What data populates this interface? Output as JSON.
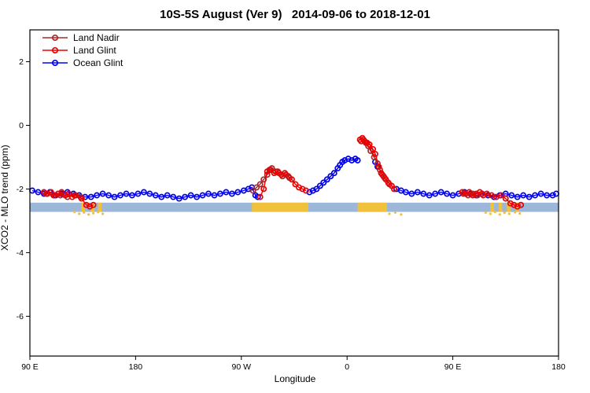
{
  "chart_data": {
    "type": "scatter",
    "title": "10S-5S August (Ver 9)   2014-09-06 to 2018-12-01",
    "xlabel": "Longitude",
    "ylabel": "XCO2 - MLO trend (ppm)",
    "x_axis_note": "x is degrees eastward along axis starting at 90E, wrapping through 180 / 90W / 0 / 90E / 180",
    "xlim": [
      0,
      450
    ],
    "ylim": [
      -7.25,
      3.0
    ],
    "x_ticks": [
      {
        "u": 0,
        "label": "90 E"
      },
      {
        "u": 90,
        "label": "180"
      },
      {
        "u": 180,
        "label": "90 W"
      },
      {
        "u": 270,
        "label": "0"
      },
      {
        "u": 360,
        "label": "90 E"
      },
      {
        "u": 450,
        "label": "180"
      }
    ],
    "y_ticks": [
      2,
      0,
      -2,
      -4,
      -6
    ],
    "grid": false,
    "legend_position": "top-left",
    "legend": [
      {
        "name": "Land Nadir",
        "color": "#A52A2A"
      },
      {
        "name": "Land Glint",
        "color": "#EE0000"
      },
      {
        "name": "Ocean Glint",
        "color": "#0000EE"
      }
    ],
    "series": [
      {
        "name": "Ocean Glint",
        "color": "#0000EE",
        "segments": [
          [
            [
              2,
              -2.05
            ],
            [
              7,
              -2.1
            ],
            [
              12,
              -2.15
            ],
            [
              17,
              -2.1
            ],
            [
              22,
              -2.2
            ],
            [
              27,
              -2.15
            ],
            [
              32,
              -2.1
            ],
            [
              37,
              -2.15
            ],
            [
              42,
              -2.2
            ],
            [
              47,
              -2.25
            ],
            [
              52,
              -2.25
            ],
            [
              57,
              -2.2
            ],
            [
              62,
              -2.15
            ],
            [
              67,
              -2.2
            ],
            [
              72,
              -2.25
            ],
            [
              77,
              -2.2
            ],
            [
              82,
              -2.15
            ],
            [
              87,
              -2.2
            ],
            [
              92,
              -2.15
            ],
            [
              97,
              -2.1
            ],
            [
              102,
              -2.15
            ],
            [
              107,
              -2.2
            ],
            [
              112,
              -2.25
            ],
            [
              117,
              -2.2
            ],
            [
              122,
              -2.25
            ],
            [
              127,
              -2.3
            ],
            [
              132,
              -2.25
            ],
            [
              137,
              -2.2
            ],
            [
              142,
              -2.25
            ],
            [
              147,
              -2.2
            ],
            [
              152,
              -2.15
            ],
            [
              157,
              -2.2
            ],
            [
              162,
              -2.15
            ],
            [
              167,
              -2.1
            ],
            [
              172,
              -2.15
            ],
            [
              177,
              -2.1
            ],
            [
              182,
              -2.05
            ],
            [
              186,
              -2.0
            ],
            [
              189,
              -1.95
            ],
            [
              192,
              -2.2
            ],
            [
              194,
              -2.25
            ]
          ],
          [
            [
              238,
              -2.1
            ],
            [
              241,
              -2.05
            ],
            [
              244,
              -2.0
            ],
            [
              247,
              -1.9
            ],
            [
              250,
              -1.8
            ],
            [
              253,
              -1.7
            ],
            [
              256,
              -1.6
            ],
            [
              259,
              -1.5
            ],
            [
              262,
              -1.35
            ],
            [
              264,
              -1.25
            ],
            [
              266,
              -1.15
            ],
            [
              268,
              -1.1
            ],
            [
              271,
              -1.05
            ],
            [
              274,
              -1.1
            ],
            [
              277,
              -1.05
            ],
            [
              279,
              -1.1
            ]
          ],
          [
            [
              294,
              -1.15
            ],
            [
              296,
              -1.3
            ]
          ],
          [
            [
              312,
              -2.0
            ],
            [
              316,
              -2.05
            ],
            [
              320,
              -2.1
            ],
            [
              325,
              -2.15
            ],
            [
              330,
              -2.1
            ],
            [
              335,
              -2.15
            ],
            [
              340,
              -2.2
            ],
            [
              345,
              -2.15
            ],
            [
              350,
              -2.1
            ],
            [
              355,
              -2.15
            ],
            [
              360,
              -2.2
            ],
            [
              365,
              -2.15
            ],
            [
              370,
              -2.1
            ],
            [
              375,
              -2.15
            ],
            [
              380,
              -2.2
            ],
            [
              385,
              -2.15
            ],
            [
              390,
              -2.2
            ],
            [
              395,
              -2.25
            ],
            [
              400,
              -2.2
            ],
            [
              405,
              -2.15
            ],
            [
              410,
              -2.2
            ],
            [
              415,
              -2.25
            ],
            [
              420,
              -2.2
            ],
            [
              425,
              -2.25
            ],
            [
              430,
              -2.2
            ],
            [
              435,
              -2.15
            ],
            [
              440,
              -2.2
            ],
            [
              445,
              -2.2
            ],
            [
              448,
              -2.15
            ]
          ]
        ]
      },
      {
        "name": "Land Nadir",
        "color": "#A52A2A",
        "segments": [
          [
            [
              14,
              -2.15
            ],
            [
              20,
              -2.2
            ],
            [
              26,
              -2.2
            ],
            [
              32,
              -2.25
            ],
            [
              38,
              -2.2
            ],
            [
              43,
              -2.25
            ]
          ],
          [
            [
              190,
              -2.05
            ],
            [
              193,
              -1.95
            ],
            [
              196,
              -1.85
            ],
            [
              199,
              -1.7
            ],
            [
              202,
              -1.55
            ],
            [
              204,
              -1.4
            ],
            [
              206,
              -1.35
            ],
            [
              209,
              -1.45
            ],
            [
              212,
              -1.5
            ],
            [
              215,
              -1.6
            ],
            [
              218,
              -1.55
            ],
            [
              221,
              -1.65
            ]
          ],
          [
            [
              282,
              -0.5
            ],
            [
              284,
              -0.45
            ],
            [
              286,
              -0.55
            ],
            [
              288,
              -0.65
            ],
            [
              290,
              -0.8
            ],
            [
              293,
              -1.0
            ],
            [
              296,
              -1.2
            ],
            [
              298,
              -1.4
            ],
            [
              300,
              -1.55
            ],
            [
              302,
              -1.65
            ],
            [
              306,
              -1.85
            ]
          ],
          [
            [
              369,
              -2.15
            ],
            [
              373,
              -2.2
            ],
            [
              377,
              -2.15
            ],
            [
              381,
              -2.2
            ],
            [
              385,
              -2.15
            ]
          ]
        ]
      },
      {
        "name": "Land Glint",
        "color": "#EE0000",
        "segments": [
          [
            [
              12,
              -2.1
            ],
            [
              15,
              -2.15
            ],
            [
              18,
              -2.1
            ],
            [
              21,
              -2.2
            ],
            [
              24,
              -2.15
            ],
            [
              27,
              -2.1
            ],
            [
              30,
              -2.2
            ],
            [
              33,
              -2.15
            ],
            [
              36,
              -2.25
            ],
            [
              39,
              -2.2
            ],
            [
              44,
              -2.3
            ],
            [
              48,
              -2.5
            ],
            [
              51,
              -2.55
            ],
            [
              54,
              -2.5
            ]
          ],
          [
            [
              196,
              -2.25
            ],
            [
              199,
              -2.0
            ],
            [
              202,
              -1.45
            ],
            [
              205,
              -1.4
            ],
            [
              208,
              -1.5
            ],
            [
              211,
              -1.45
            ],
            [
              214,
              -1.55
            ],
            [
              217,
              -1.5
            ],
            [
              220,
              -1.6
            ],
            [
              223,
              -1.7
            ],
            [
              226,
              -1.85
            ],
            [
              229,
              -1.95
            ],
            [
              232,
              -2.0
            ],
            [
              235,
              -2.05
            ]
          ],
          [
            [
              281,
              -0.45
            ],
            [
              283,
              -0.4
            ],
            [
              285,
              -0.5
            ],
            [
              287,
              -0.55
            ],
            [
              289,
              -0.6
            ],
            [
              292,
              -0.75
            ],
            [
              294,
              -0.9
            ],
            [
              297,
              -1.3
            ],
            [
              299,
              -1.5
            ],
            [
              301,
              -1.6
            ],
            [
              303,
              -1.7
            ],
            [
              305,
              -1.8
            ],
            [
              308,
              -1.9
            ],
            [
              310,
              -2.0
            ]
          ],
          [
            [
              368,
              -2.1
            ],
            [
              371,
              -2.15
            ],
            [
              374,
              -2.1
            ],
            [
              377,
              -2.2
            ],
            [
              380,
              -2.15
            ],
            [
              383,
              -2.1
            ],
            [
              386,
              -2.2
            ],
            [
              389,
              -2.15
            ],
            [
              393,
              -2.2
            ],
            [
              397,
              -2.25
            ],
            [
              401,
              -2.2
            ],
            [
              405,
              -2.3
            ],
            [
              409,
              -2.45
            ],
            [
              412,
              -2.5
            ],
            [
              415,
              -2.55
            ],
            [
              418,
              -2.5
            ]
          ]
        ]
      }
    ],
    "land_strip": {
      "description": "latitude-band land/ocean strip",
      "ocean_color": "#9DB7D8",
      "land_color": "#F0C23C",
      "v_top": -2.43,
      "v_bottom": -2.72,
      "land_segments": [
        [
          189,
          237
        ],
        [
          279,
          304
        ],
        [
          44,
          47
        ],
        [
          52,
          55
        ],
        [
          58,
          61
        ],
        [
          392,
          395
        ],
        [
          399,
          402
        ],
        [
          406,
          409
        ],
        [
          414,
          416
        ]
      ],
      "islands": [
        [
          38,
          -2.72
        ],
        [
          42,
          -2.78
        ],
        [
          46,
          -2.74
        ],
        [
          50,
          -2.8
        ],
        [
          54,
          -2.76
        ],
        [
          58,
          -2.72
        ],
        [
          62,
          -2.78
        ],
        [
          306,
          -2.78
        ],
        [
          311,
          -2.74
        ],
        [
          316,
          -2.8
        ],
        [
          388,
          -2.74
        ],
        [
          392,
          -2.78
        ],
        [
          396,
          -2.72
        ],
        [
          400,
          -2.8
        ],
        [
          404,
          -2.75
        ],
        [
          408,
          -2.78
        ],
        [
          413,
          -2.73
        ],
        [
          417,
          -2.77
        ]
      ]
    }
  }
}
